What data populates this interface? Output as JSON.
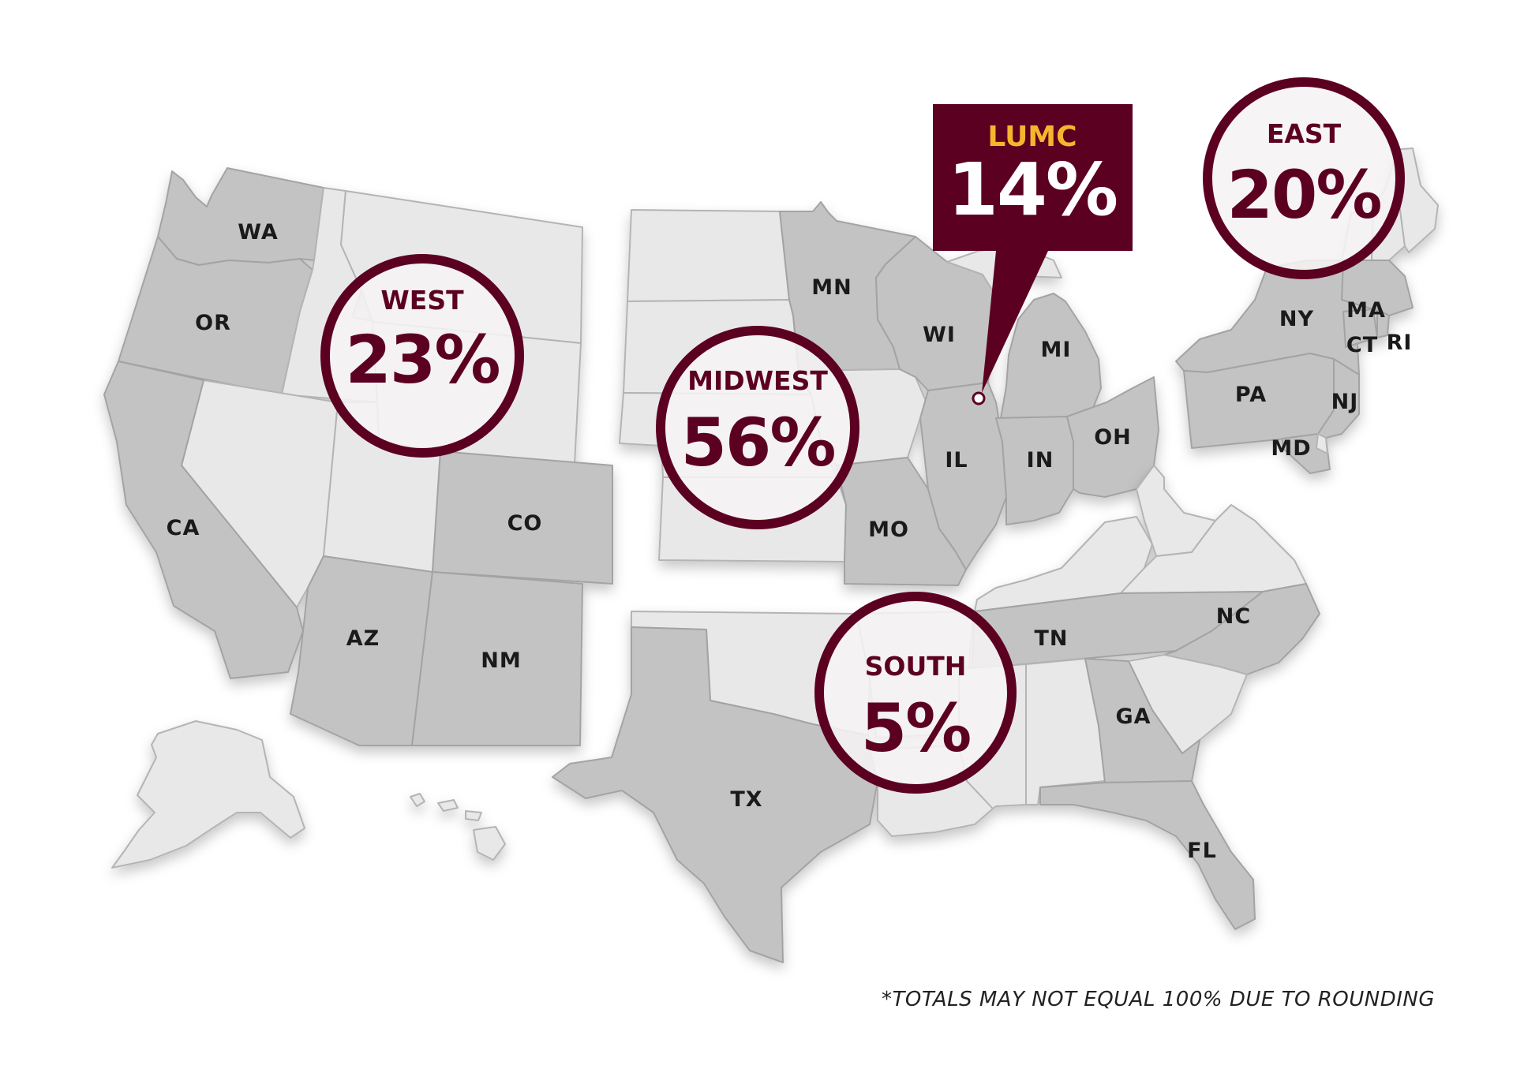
{
  "map": {
    "footnote": "*TOTALS MAY NOT EQUAL 100% DUE TO ROUNDING",
    "colors": {
      "accent": "#5c0022",
      "callout_label": "#f5b52e",
      "state_highlight": "#c3c3c3",
      "state_other": "#e8e8e8"
    },
    "regions": [
      {
        "name": "WEST",
        "value": "23%"
      },
      {
        "name": "MIDWEST",
        "value": "56%"
      },
      {
        "name": "SOUTH",
        "value": "5%"
      },
      {
        "name": "EAST",
        "value": "20%"
      }
    ],
    "callout": {
      "name": "LUMC",
      "value": "14%"
    },
    "state_labels": [
      "WA",
      "OR",
      "CA",
      "AZ",
      "NM",
      "CO",
      "TX",
      "MN",
      "WI",
      "MI",
      "IL",
      "IN",
      "OH",
      "MO",
      "TN",
      "NC",
      "GA",
      "FL",
      "NY",
      "PA",
      "NJ",
      "MD",
      "MA",
      "CT",
      "RI"
    ]
  }
}
